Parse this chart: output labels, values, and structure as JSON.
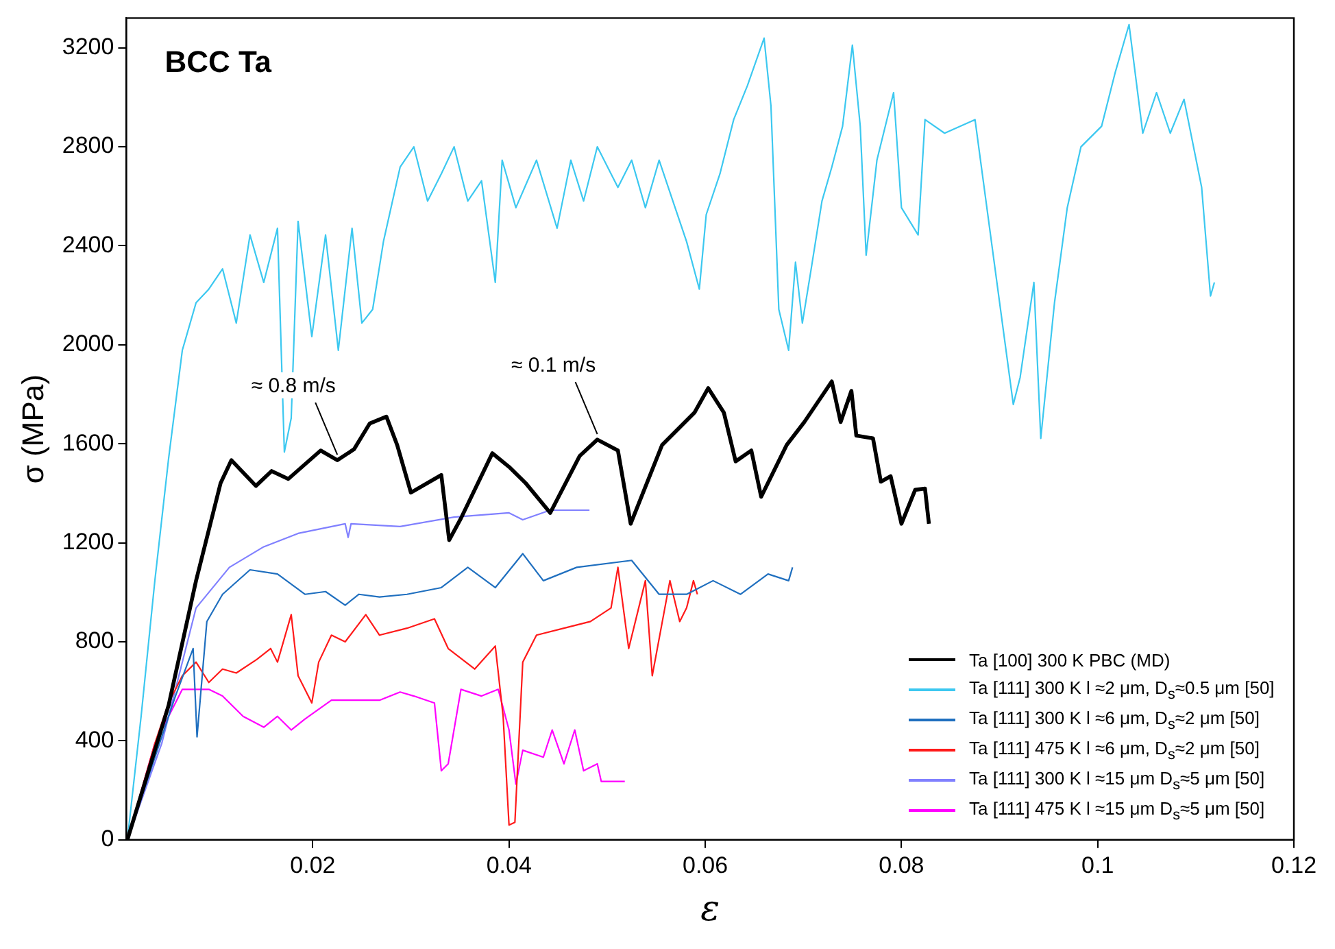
{
  "chart_data": {
    "type": "line",
    "title": "BCC Ta",
    "xlabel": "ε",
    "ylabel": "σ (MPa)",
    "xlim": [
      0.001,
      0.12
    ],
    "xticks": [
      0.02,
      0.04,
      0.06,
      0.08,
      0.1,
      0.12
    ],
    "ylim": [
      0,
      3320
    ],
    "yticks": [
      0,
      400,
      800,
      1200,
      1600,
      2000,
      2400,
      2800,
      3200
    ],
    "grid": false,
    "legend": "bottom right",
    "marker": "none",
    "line_style": "solid",
    "annotations": [
      {
        "text": "≈ 0.8 m/s",
        "x": 0.0225,
        "y": 1534
      },
      {
        "text": "≈ 0.1 m/s",
        "x": 0.049,
        "y": 1617
      }
    ],
    "series": [
      {
        "name": "Ta [100] 300 K PBC (MD)",
        "color": "#000000",
        "x": [
          0.0011,
          0.0053,
          0.0081,
          0.0106,
          0.0117,
          0.0142,
          0.0158,
          0.0175,
          0.0208,
          0.0225,
          0.0242,
          0.0258,
          0.0275,
          0.0286,
          0.03,
          0.0331,
          0.0339,
          0.0351,
          0.0383,
          0.04,
          0.0417,
          0.0442,
          0.0472,
          0.049,
          0.0511,
          0.0524,
          0.0556,
          0.0589,
          0.0603,
          0.0619,
          0.0631,
          0.0647,
          0.0657,
          0.0683,
          0.0701,
          0.0729,
          0.0738,
          0.0749,
          0.0754,
          0.0771,
          0.0779,
          0.0789,
          0.08,
          0.0814,
          0.0824,
          0.0828
        ],
        "values": [
          0,
          543,
          1047,
          1441,
          1534,
          1430,
          1490,
          1458,
          1573,
          1534,
          1578,
          1682,
          1710,
          1595,
          1403,
          1474,
          1211,
          1299,
          1562,
          1507,
          1441,
          1321,
          1551,
          1617,
          1573,
          1277,
          1595,
          1726,
          1825,
          1726,
          1529,
          1573,
          1386,
          1595,
          1688,
          1852,
          1688,
          1814,
          1633,
          1622,
          1447,
          1469,
          1277,
          1414,
          1419,
          1277
        ]
      },
      {
        "name": "Ta [111] 300 K  l ≈2 μm, D$_{s}$≈0.5 μm [50]",
        "color": "#3cc8f0",
        "x": [
          0.0011,
          0.0025,
          0.0039,
          0.0053,
          0.0067,
          0.0081,
          0.0094,
          0.0108,
          0.0122,
          0.0136,
          0.015,
          0.0164,
          0.0171,
          0.0178,
          0.0185,
          0.0199,
          0.0213,
          0.0226,
          0.024,
          0.025,
          0.0261,
          0.0272,
          0.0289,
          0.0303,
          0.0317,
          0.0331,
          0.0344,
          0.0358,
          0.0372,
          0.0386,
          0.0393,
          0.0407,
          0.0428,
          0.0449,
          0.0463,
          0.0476,
          0.049,
          0.0511,
          0.0525,
          0.0539,
          0.0553,
          0.0567,
          0.0581,
          0.0594,
          0.0601,
          0.0615,
          0.0629,
          0.0643,
          0.066,
          0.0667,
          0.0675,
          0.0685,
          0.0692,
          0.0699,
          0.0708,
          0.0719,
          0.0729,
          0.074,
          0.075,
          0.0758,
          0.0764,
          0.0775,
          0.0792,
          0.08,
          0.0817,
          0.0824,
          0.0844,
          0.0875,
          0.0914,
          0.0921,
          0.0935,
          0.0942,
          0.0956,
          0.0969,
          0.0983,
          0.1004,
          0.1018,
          0.1032,
          0.1046,
          0.106,
          0.1074,
          0.1088,
          0.1106,
          0.1115,
          0.1119
        ],
        "values": [
          0,
          499,
          1047,
          1540,
          1978,
          2170,
          2225,
          2307,
          2088,
          2444,
          2252,
          2471,
          1567,
          1704,
          2499,
          2033,
          2444,
          1978,
          2471,
          2088,
          2143,
          2417,
          2718,
          2800,
          2581,
          2691,
          2800,
          2581,
          2663,
          2252,
          2746,
          2554,
          2746,
          2471,
          2746,
          2581,
          2800,
          2636,
          2746,
          2554,
          2746,
          2581,
          2417,
          2225,
          2526,
          2691,
          2910,
          3047,
          3239,
          2965,
          2143,
          1978,
          2334,
          2088,
          2307,
          2581,
          2718,
          2883,
          3211,
          2883,
          2362,
          2746,
          3019,
          2554,
          2444,
          2910,
          2855,
          2910,
          1759,
          1869,
          2252,
          1622,
          2170,
          2554,
          2800,
          2883,
          3102,
          3294,
          2855,
          3019,
          2855,
          2992,
          2636,
          2197,
          2252
        ]
      },
      {
        "name": "Ta [111] 300 K l ≈6 μm, D$_{s}$≈2 μm [50]",
        "color": "#1f6fbf",
        "x": [
          0.0011,
          0.0053,
          0.006,
          0.0078,
          0.0082,
          0.0092,
          0.0108,
          0.0136,
          0.0164,
          0.0192,
          0.0213,
          0.0233,
          0.0247,
          0.0268,
          0.0296,
          0.0331,
          0.0358,
          0.0386,
          0.0414,
          0.0435,
          0.0469,
          0.0525,
          0.0553,
          0.0581,
          0.0608,
          0.0636,
          0.0664,
          0.0685,
          0.0689
        ],
        "values": [
          0,
          499,
          581,
          773,
          416,
          882,
          992,
          1091,
          1074,
          992,
          1003,
          948,
          992,
          981,
          992,
          1019,
          1101,
          1019,
          1156,
          1047,
          1101,
          1129,
          992,
          992,
          1047,
          992,
          1074,
          1047,
          1101
        ]
      },
      {
        "name": "Ta [111] 475 K l ≈6 μm, D$_{s}$≈2 μm [50]",
        "color": "#ff1a1a",
        "x": [
          0.0011,
          0.0039,
          0.0053,
          0.0067,
          0.0081,
          0.0094,
          0.0108,
          0.0122,
          0.0143,
          0.0157,
          0.0164,
          0.0178,
          0.0185,
          0.0199,
          0.0206,
          0.0219,
          0.0233,
          0.0254,
          0.0268,
          0.0296,
          0.0324,
          0.0338,
          0.0365,
          0.0386,
          0.0394,
          0.04,
          0.0406,
          0.0414,
          0.0428,
          0.0456,
          0.0483,
          0.0504,
          0.0511,
          0.0522,
          0.0539,
          0.0546,
          0.0564,
          0.0574,
          0.0581,
          0.0588,
          0.0592
        ],
        "values": [
          0,
          389,
          553,
          663,
          718,
          636,
          690,
          674,
          729,
          773,
          718,
          910,
          663,
          553,
          718,
          827,
          800,
          910,
          827,
          855,
          893,
          773,
          690,
          783,
          499,
          60,
          71,
          718,
          827,
          855,
          882,
          937,
          1101,
          773,
          1047,
          663,
          1047,
          882,
          937,
          1047,
          992
        ]
      },
      {
        "name": "Ta [111] 300 K  l ≈15 μm D$_{s}$≈5 μm [50]",
        "color": "#8080ff",
        "x": [
          0.0011,
          0.0046,
          0.0081,
          0.0115,
          0.015,
          0.0185,
          0.0233,
          0.0236,
          0.0239,
          0.0289,
          0.0344,
          0.04,
          0.0414,
          0.0442,
          0.0482
        ],
        "values": [
          0,
          389,
          937,
          1101,
          1184,
          1238,
          1277,
          1222,
          1277,
          1266,
          1304,
          1321,
          1293,
          1332,
          1332
        ]
      },
      {
        "name": "Ta [111] 475 K  l ≈15 μm D$_{s}$≈5 μm [50]",
        "color": "#ff00ff",
        "x": [
          0.0011,
          0.0039,
          0.0067,
          0.0094,
          0.0108,
          0.0129,
          0.015,
          0.0164,
          0.0178,
          0.0192,
          0.0219,
          0.0268,
          0.0289,
          0.0303,
          0.0324,
          0.0331,
          0.0338,
          0.0351,
          0.0372,
          0.0389,
          0.04,
          0.0407,
          0.0414,
          0.0435,
          0.0444,
          0.0456,
          0.0467,
          0.0476,
          0.049,
          0.0494,
          0.0518
        ],
        "values": [
          0,
          389,
          608,
          608,
          581,
          499,
          455,
          499,
          444,
          488,
          564,
          564,
          597,
          581,
          553,
          279,
          307,
          608,
          581,
          608,
          444,
          225,
          362,
          334,
          444,
          307,
          444,
          279,
          307,
          236,
          236
        ]
      }
    ]
  }
}
